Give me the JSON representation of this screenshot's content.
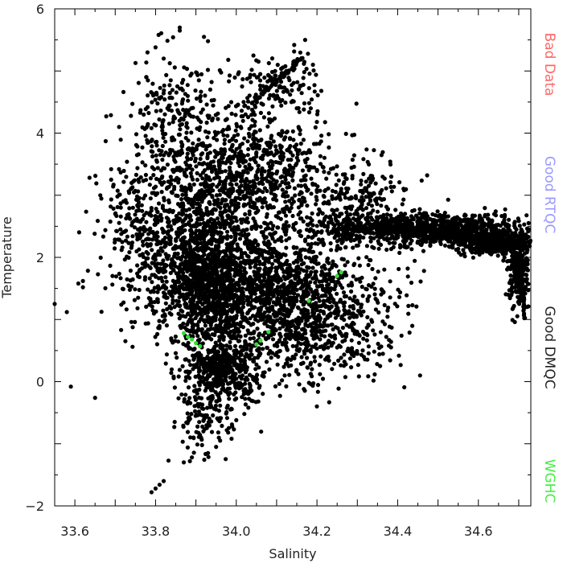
{
  "chart_data": {
    "type": "scatter",
    "title": "",
    "xlabel": "Salinity",
    "ylabel": "Temperature",
    "xlim": [
      33.55,
      34.73
    ],
    "ylim": [
      -2,
      6
    ],
    "x_ticks": [
      33.6,
      33.8,
      34.0,
      34.2,
      34.4,
      34.6
    ],
    "x_tick_labels": [
      "33.6",
      "33.8",
      "34.0",
      "34.2",
      "34.4",
      "34.6"
    ],
    "y_ticks": [
      -2,
      0,
      2,
      4,
      6
    ],
    "y_tick_labels": [
      "−2",
      "0",
      "2",
      "4",
      "6"
    ],
    "grid": false,
    "legend_placement": "right-vertical",
    "legend": [
      {
        "label": "Bad Data",
        "color": "#ff6666"
      },
      {
        "label": "Good RTQC",
        "color": "#9999ff"
      },
      {
        "label": "Good DMQC",
        "color": "#222222"
      },
      {
        "label": "WGHC",
        "color": "#44ee44"
      }
    ],
    "series": [
      {
        "color": "#000000",
        "clusters": [
          {
            "x": 34.48,
            "y": 2.45,
            "sx": 0.14,
            "sy": 0.12,
            "n": 1100
          },
          {
            "x": 34.64,
            "y": 2.22,
            "sx": 0.04,
            "sy": 0.08,
            "n": 500
          },
          {
            "x": 34.7,
            "y": 1.75,
            "sx": 0.012,
            "sy": 0.28,
            "n": 220
          },
          {
            "x": 34.1,
            "y": 1.45,
            "sx": 0.12,
            "sy": 0.55,
            "n": 1300
          },
          {
            "x": 33.93,
            "y": 1.6,
            "sx": 0.05,
            "sy": 0.42,
            "n": 700
          },
          {
            "x": 33.96,
            "y": 0.25,
            "sx": 0.05,
            "sy": 0.3,
            "n": 450
          },
          {
            "x": 33.9,
            "y": 2.4,
            "sx": 0.1,
            "sy": 0.7,
            "n": 900
          },
          {
            "x": 34.05,
            "y": 3.4,
            "sx": 0.1,
            "sy": 0.55,
            "n": 700
          },
          {
            "x": 33.85,
            "y": 4.2,
            "sx": 0.05,
            "sy": 0.5,
            "n": 220
          },
          {
            "x": 34.1,
            "y": 4.8,
            "sx": 0.06,
            "sy": 0.25,
            "n": 120
          },
          {
            "x": 34.22,
            "y": 0.9,
            "sx": 0.1,
            "sy": 0.5,
            "n": 420
          },
          {
            "x": 33.75,
            "y": 2.4,
            "sx": 0.05,
            "sy": 0.55,
            "n": 160
          },
          {
            "x": 33.92,
            "y": -0.5,
            "sx": 0.04,
            "sy": 0.35,
            "n": 130
          },
          {
            "x": 34.3,
            "y": 2.9,
            "sx": 0.06,
            "sy": 0.3,
            "n": 200
          }
        ],
        "points": [
          {
            "x": 33.55,
            "y": 1.25
          },
          {
            "x": 33.58,
            "y": 1.12
          },
          {
            "x": 33.59,
            "y": -0.08
          },
          {
            "x": 33.62,
            "y": 1.62
          },
          {
            "x": 33.62,
            "y": 1.52
          },
          {
            "x": 33.65,
            "y": -0.26
          },
          {
            "x": 33.69,
            "y": 3.42
          },
          {
            "x": 33.69,
            "y": 3.25
          },
          {
            "x": 33.7,
            "y": 2.7
          },
          {
            "x": 33.86,
            "y": 5.7
          },
          {
            "x": 33.86,
            "y": 5.65
          },
          {
            "x": 33.92,
            "y": 5.55
          },
          {
            "x": 33.93,
            "y": 5.48
          },
          {
            "x": 33.79,
            "y": -1.78
          },
          {
            "x": 33.8,
            "y": -1.72
          },
          {
            "x": 33.81,
            "y": -1.66
          },
          {
            "x": 33.82,
            "y": -1.6
          },
          {
            "x": 33.87,
            "y": -1.3
          },
          {
            "x": 33.89,
            "y": -1.22
          },
          {
            "x": 33.93,
            "y": -1.15
          },
          {
            "x": 33.95,
            "y": -1.05
          },
          {
            "x": 33.96,
            "y": -0.95
          },
          {
            "x": 33.98,
            "y": -0.82
          },
          {
            "x": 33.99,
            "y": -0.72
          },
          {
            "x": 34.0,
            "y": -0.62
          },
          {
            "x": 34.02,
            "y": -0.52
          },
          {
            "x": 34.03,
            "y": -0.42
          },
          {
            "x": 33.78,
            "y": 5.3
          },
          {
            "x": 33.8,
            "y": 5.38
          },
          {
            "x": 33.82,
            "y": 5.2
          },
          {
            "x": 34.19,
            "y": 5.1
          },
          {
            "x": 34.15,
            "y": 4.4
          },
          {
            "x": 34.14,
            "y": 0.4
          },
          {
            "x": 34.13,
            "y": 0.25
          },
          {
            "x": 34.12,
            "y": 0.1
          }
        ],
        "trends": [
          {
            "x0": 34.04,
            "y0": 4.5,
            "x1": 34.165,
            "y1": 5.2,
            "n": 45
          },
          {
            "x0": 34.4,
            "y0": 2.5,
            "x1": 34.66,
            "y1": 2.26,
            "n": 90
          },
          {
            "x0": 34.66,
            "y0": 2.26,
            "x1": 34.7,
            "y1": 2.0,
            "n": 20
          },
          {
            "x0": 34.7,
            "y0": 2.0,
            "x1": 34.715,
            "y1": 1.0,
            "n": 40
          },
          {
            "x0": 33.95,
            "y0": 0.0,
            "x1": 34.0,
            "y1": 0.45,
            "n": 40
          }
        ]
      },
      {
        "color": "#33dd33",
        "clusters": [],
        "points": [
          {
            "x": 33.87,
            "y": 0.78
          },
          {
            "x": 33.88,
            "y": 0.72
          },
          {
            "x": 33.89,
            "y": 0.68
          },
          {
            "x": 33.9,
            "y": 0.62
          },
          {
            "x": 33.91,
            "y": 0.57
          },
          {
            "x": 34.05,
            "y": 0.6
          },
          {
            "x": 34.06,
            "y": 0.66
          },
          {
            "x": 34.25,
            "y": 1.7
          },
          {
            "x": 34.26,
            "y": 1.76
          },
          {
            "x": 34.18,
            "y": 1.3
          },
          {
            "x": 34.08,
            "y": 0.8
          }
        ],
        "trends": []
      }
    ]
  }
}
